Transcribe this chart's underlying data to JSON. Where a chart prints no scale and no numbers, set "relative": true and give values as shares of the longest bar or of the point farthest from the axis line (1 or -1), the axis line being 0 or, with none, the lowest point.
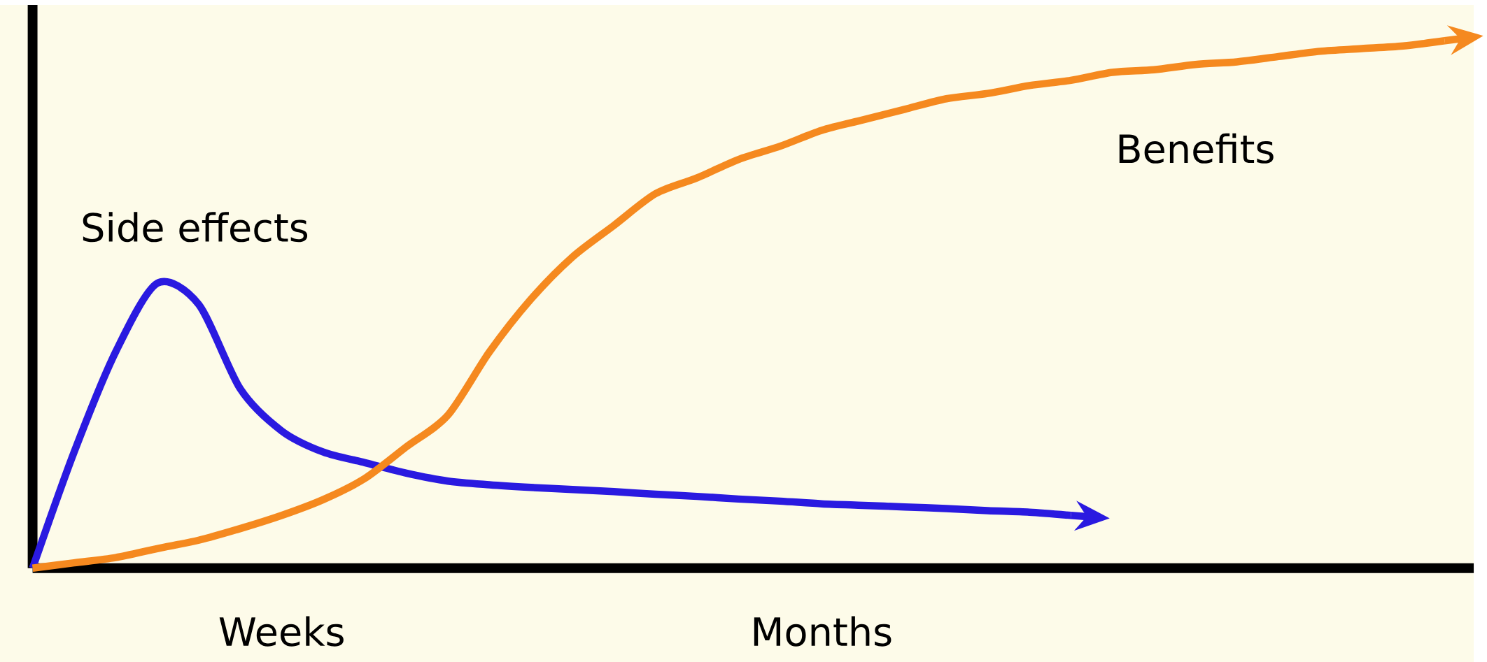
{
  "chart_data": {
    "type": "line",
    "relative": true,
    "tick_labels": "x",
    "categories": [
      null,
      null,
      null,
      null,
      null,
      null,
      "Weeks",
      null,
      null,
      null,
      null,
      null,
      null,
      null,
      null,
      null,
      null,
      null,
      null,
      "Months",
      null,
      null,
      null,
      null,
      null,
      null,
      null,
      null,
      null,
      null,
      null,
      null,
      null,
      null,
      null
    ],
    "series": [
      {
        "name": "Side effects",
        "color": "#2a1ae0",
        "values": [
          0,
          0.22,
          0.41,
          0.54,
          0.5,
          0.34,
          0.26,
          0.22,
          0.2,
          0.18,
          0.165,
          0.158,
          0.153,
          0.149,
          0.145,
          0.14,
          0.136,
          0.131,
          0.127,
          0.122,
          0.119,
          0.116,
          0.113,
          0.109,
          0.106,
          0.1,
          null,
          null,
          null,
          null,
          null,
          null,
          null,
          null,
          null
        ]
      },
      {
        "name": "Benefits",
        "color": "#f5891f",
        "values": [
          0,
          0.01,
          0.02,
          0.037,
          0.053,
          0.075,
          0.1,
          0.13,
          0.17,
          0.23,
          0.29,
          0.41,
          0.51,
          0.59,
          0.65,
          0.71,
          0.74,
          0.775,
          0.8,
          0.83,
          0.85,
          0.87,
          0.89,
          0.9,
          0.915,
          0.925,
          0.94,
          0.945,
          0.955,
          0.96,
          0.97,
          0.98,
          0.985,
          0.99,
          1
        ]
      }
    ]
  }
}
